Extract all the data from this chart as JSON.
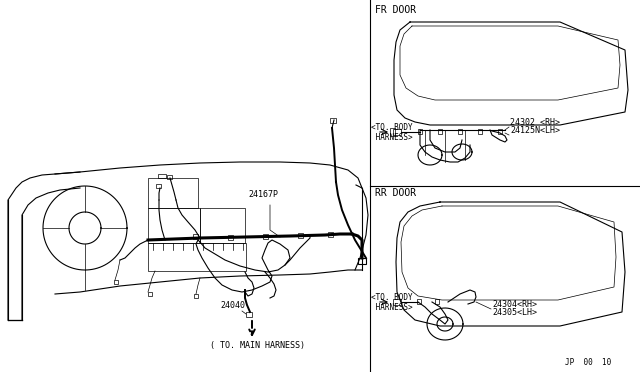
{
  "bg_color": "#ffffff",
  "lc": "#000000",
  "gray": "#888888",
  "fr_door_label": "FR DOOR",
  "rr_door_label": "RR DOOR",
  "part_24167P": "24167P",
  "part_24040": "24040",
  "part_to_main": "( TO. MAIN HARNESS)",
  "part_24302": "24302 <RH>",
  "part_24125N": "24125N<LH>",
  "part_24304": "24304<RH>",
  "part_24305": "24305<LH>",
  "to_body_fr": "<TO. BODY\n HARNESS>",
  "to_body_rr": "<TO. BODY\n HARNESS>",
  "page_id": "JP  00  10"
}
